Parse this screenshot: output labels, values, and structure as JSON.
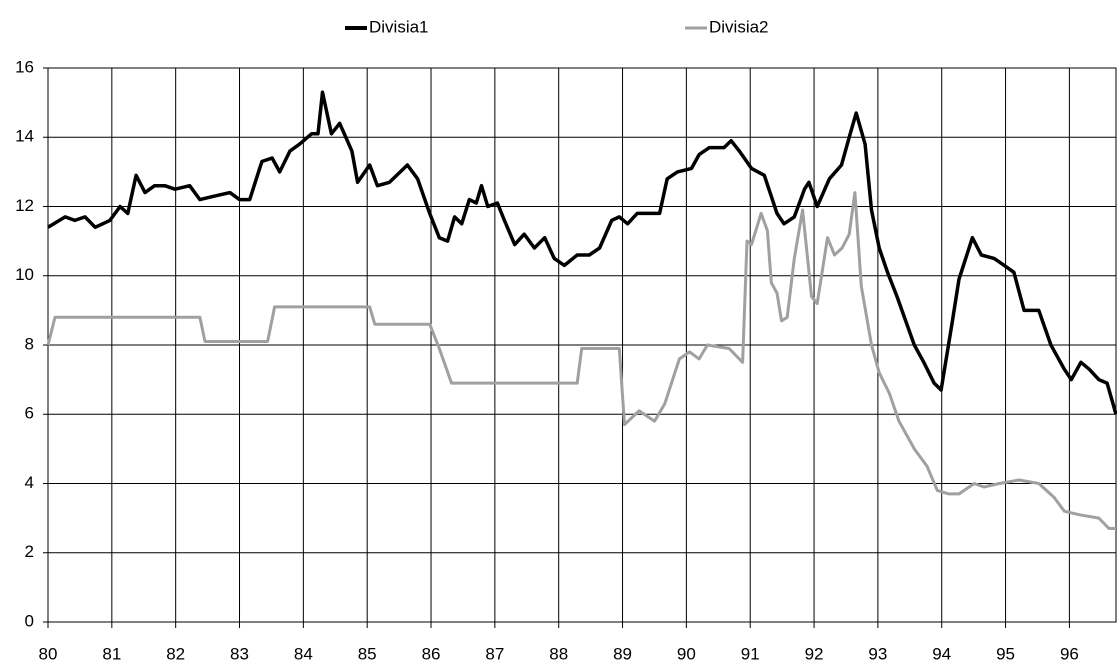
{
  "chart_data": {
    "type": "line",
    "xlim": [
      80,
      96.73
    ],
    "xticks": [
      80,
      81,
      82,
      83,
      84,
      85,
      86,
      87,
      88,
      89,
      90,
      91,
      92,
      93,
      94,
      95,
      96
    ],
    "ylim": [
      0,
      16
    ],
    "yticks": [
      0,
      2,
      4,
      6,
      8,
      10,
      12,
      14,
      16
    ],
    "grid": true,
    "legend": "top",
    "series": [
      {
        "name": "Divisia1",
        "color": "#000000",
        "x": [
          80.0,
          80.27,
          80.42,
          80.58,
          80.74,
          80.97,
          81.13,
          81.25,
          81.38,
          81.52,
          81.67,
          81.83,
          81.99,
          82.22,
          82.38,
          82.61,
          82.85,
          83.0,
          83.16,
          83.35,
          83.51,
          83.63,
          83.79,
          83.94,
          84.13,
          84.23,
          84.3,
          84.44,
          84.57,
          84.76,
          84.85,
          85.04,
          85.16,
          85.35,
          85.63,
          85.79,
          85.98,
          86.13,
          86.26,
          86.37,
          86.48,
          86.6,
          86.71,
          86.79,
          86.89,
          87.04,
          87.15,
          87.31,
          87.46,
          87.62,
          87.78,
          87.93,
          88.09,
          88.29,
          88.48,
          88.64,
          88.83,
          88.95,
          89.08,
          89.23,
          89.58,
          89.7,
          89.86,
          90.08,
          90.2,
          90.36,
          90.59,
          90.7,
          90.83,
          91.02,
          91.22,
          91.42,
          91.53,
          91.69,
          91.85,
          91.92,
          92.05,
          92.24,
          92.43,
          92.55,
          92.66,
          92.8,
          92.9,
          93.02,
          93.15,
          93.3,
          93.57,
          93.72,
          93.88,
          93.99,
          94.16,
          94.27,
          94.48,
          94.62,
          94.82,
          94.98,
          95.13,
          95.29,
          95.52,
          95.71,
          95.92,
          96.03,
          96.18,
          96.31,
          96.46,
          96.59,
          96.73
        ],
        "values": [
          11.4,
          11.7,
          11.6,
          11.7,
          11.4,
          11.6,
          12.0,
          11.8,
          12.9,
          12.4,
          12.6,
          12.6,
          12.5,
          12.6,
          12.2,
          12.3,
          12.4,
          12.2,
          12.2,
          13.3,
          13.4,
          13.0,
          13.6,
          13.8,
          14.1,
          14.1,
          15.3,
          14.1,
          14.4,
          13.6,
          12.7,
          13.2,
          12.6,
          12.7,
          13.2,
          12.8,
          11.8,
          11.1,
          11.0,
          11.7,
          11.5,
          12.2,
          12.1,
          12.6,
          12.0,
          12.1,
          11.6,
          10.9,
          11.2,
          10.8,
          11.1,
          10.5,
          10.3,
          10.6,
          10.6,
          10.8,
          11.6,
          11.7,
          11.5,
          11.8,
          11.8,
          12.8,
          13.0,
          13.1,
          13.5,
          13.7,
          13.7,
          13.9,
          13.6,
          13.1,
          12.9,
          11.8,
          11.5,
          11.7,
          12.5,
          12.7,
          12.0,
          12.8,
          13.2,
          14.0,
          14.7,
          13.8,
          11.9,
          10.8,
          10.1,
          9.4,
          8.0,
          7.5,
          6.9,
          6.7,
          8.6,
          9.9,
          11.1,
          10.6,
          10.5,
          10.3,
          10.1,
          9.0,
          9.0,
          8.0,
          7.3,
          7.0,
          7.5,
          7.3,
          7.0,
          6.9,
          6.0
        ]
      },
      {
        "name": "Divisia2",
        "color": "#a0a0a0",
        "x": [
          80.0,
          80.11,
          82.38,
          82.46,
          83.44,
          83.55,
          85.04,
          85.12,
          85.98,
          86.13,
          86.32,
          88.29,
          88.36,
          88.95,
          89.03,
          89.26,
          89.5,
          89.66,
          89.89,
          90.05,
          90.2,
          90.33,
          90.67,
          90.88,
          90.95,
          91.02,
          91.17,
          91.27,
          91.33,
          91.42,
          91.49,
          91.58,
          91.69,
          91.82,
          91.96,
          92.05,
          92.21,
          92.32,
          92.44,
          92.55,
          92.64,
          92.74,
          92.9,
          93.02,
          93.18,
          93.33,
          93.57,
          93.77,
          93.93,
          94.11,
          94.27,
          94.51,
          94.66,
          94.9,
          95.21,
          95.52,
          95.76,
          95.92,
          96.15,
          96.46,
          96.62,
          96.73
        ],
        "values": [
          8.0,
          8.8,
          8.8,
          8.1,
          8.1,
          9.1,
          9.1,
          8.6,
          8.6,
          7.9,
          6.9,
          6.9,
          7.9,
          7.9,
          5.7,
          6.1,
          5.8,
          6.3,
          7.6,
          7.8,
          7.6,
          8.0,
          7.9,
          7.5,
          11.0,
          10.9,
          11.8,
          11.3,
          9.8,
          9.5,
          8.7,
          8.8,
          10.5,
          11.9,
          9.4,
          9.2,
          11.1,
          10.6,
          10.8,
          11.2,
          12.4,
          9.7,
          8.0,
          7.2,
          6.6,
          5.8,
          5.0,
          4.5,
          3.8,
          3.7,
          3.7,
          4.0,
          3.9,
          4.0,
          4.1,
          4.0,
          3.6,
          3.2,
          3.1,
          3.0,
          2.7,
          2.7
        ]
      }
    ]
  }
}
